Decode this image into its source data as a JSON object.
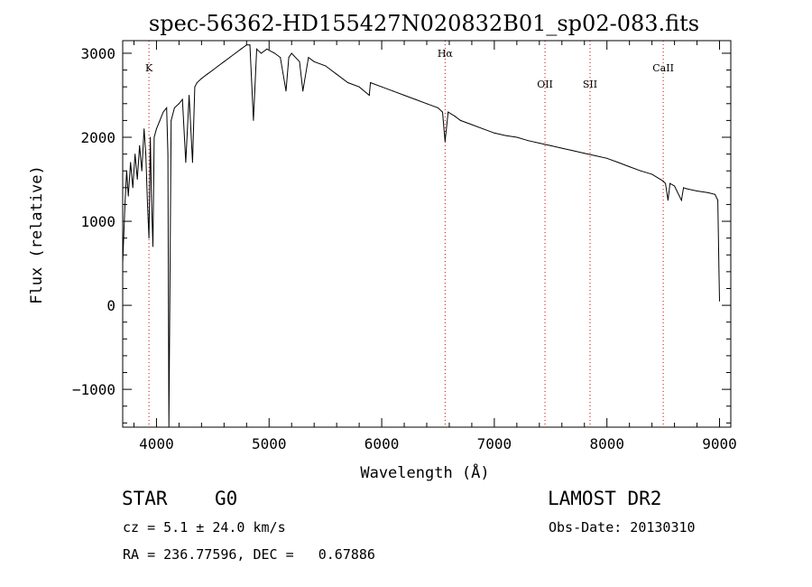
{
  "chart_data": {
    "type": "line",
    "title": "spec-56362-HD155427N020832B01_sp02-083.fits",
    "xlabel": "Wavelength (Å)",
    "ylabel": "Flux (relative)",
    "xlim": [
      3700,
      9100
    ],
    "ylim": [
      -1450,
      3150
    ],
    "grid": false,
    "x_ticks": [
      4000,
      5000,
      6000,
      7000,
      8000,
      9000
    ],
    "x_tick_labels": [
      "4000",
      "5000",
      "6000",
      "7000",
      "8000",
      "9000"
    ],
    "y_ticks": [
      -1000,
      0,
      1000,
      2000,
      3000
    ],
    "y_tick_labels": [
      "−1000",
      "0",
      "1000",
      "2000",
      "3000"
    ],
    "series": [
      {
        "x": [
          3700,
          3720,
          3735,
          3750,
          3770,
          3790,
          3810,
          3830,
          3850,
          3870,
          3890,
          3905,
          3920,
          3933,
          3945,
          3955,
          3968,
          3980,
          4000,
          4030,
          4060,
          4090,
          4101,
          4110,
          4130,
          4160,
          4200,
          4230,
          4260,
          4290,
          4320,
          4340,
          4360,
          4400,
          4450,
          4500,
          4550,
          4600,
          4650,
          4700,
          4750,
          4800,
          4830,
          4861,
          4890,
          4930,
          4980,
          5050,
          5100,
          5150,
          5175,
          5200,
          5270,
          5300,
          5350,
          5400,
          5500,
          5600,
          5700,
          5800,
          5890,
          5900,
          6000,
          6100,
          6200,
          6300,
          6400,
          6500,
          6540,
          6563,
          6590,
          6650,
          6700,
          6800,
          6900,
          7000,
          7100,
          7200,
          7300,
          7400,
          7500,
          7600,
          7700,
          7800,
          7900,
          8000,
          8100,
          8200,
          8300,
          8400,
          8498,
          8520,
          8542,
          8560,
          8600,
          8662,
          8680,
          8700,
          8800,
          8900,
          8960,
          8985,
          8995,
          9000
        ],
        "y": [
          500,
          1200,
          1600,
          1300,
          1700,
          1400,
          1800,
          1500,
          1900,
          1600,
          2100,
          1800,
          1200,
          800,
          2000,
          1300,
          700,
          2000,
          2100,
          2200,
          2300,
          2350,
          1800,
          -1450,
          2200,
          2350,
          2400,
          2450,
          1700,
          2500,
          1700,
          2600,
          2650,
          2700,
          2750,
          2800,
          2850,
          2900,
          2950,
          3000,
          3050,
          3100,
          3100,
          2200,
          3050,
          3000,
          3050,
          3000,
          2950,
          2550,
          2950,
          3000,
          2900,
          2550,
          2950,
          2900,
          2850,
          2750,
          2650,
          2600,
          2500,
          2650,
          2600,
          2550,
          2500,
          2450,
          2400,
          2350,
          2300,
          1950,
          2300,
          2250,
          2200,
          2150,
          2100,
          2050,
          2020,
          2000,
          1960,
          1930,
          1900,
          1870,
          1840,
          1810,
          1780,
          1750,
          1700,
          1650,
          1600,
          1560,
          1480,
          1450,
          1250,
          1450,
          1420,
          1250,
          1400,
          1390,
          1360,
          1340,
          1320,
          1250,
          400,
          50
        ]
      }
    ],
    "lines": [
      {
        "label": "K",
        "x": 3933
      },
      {
        "label": "Hα",
        "x": 6563
      },
      {
        "label": "OII",
        "x": 7450
      },
      {
        "label": "SII",
        "x": 7850
      },
      {
        "label": "CaII",
        "x": 8500
      }
    ],
    "line_color": "#000000",
    "marker_color": "#cc0000"
  },
  "info": {
    "class": "STAR",
    "subclass": "G0",
    "survey": "LAMOST DR2",
    "cz": "cz = 5.1 ± 24.0 km/s",
    "obs_date": "Obs-Date: 20130310",
    "coords": "RA = 236.77596, DEC =   0.67886"
  }
}
